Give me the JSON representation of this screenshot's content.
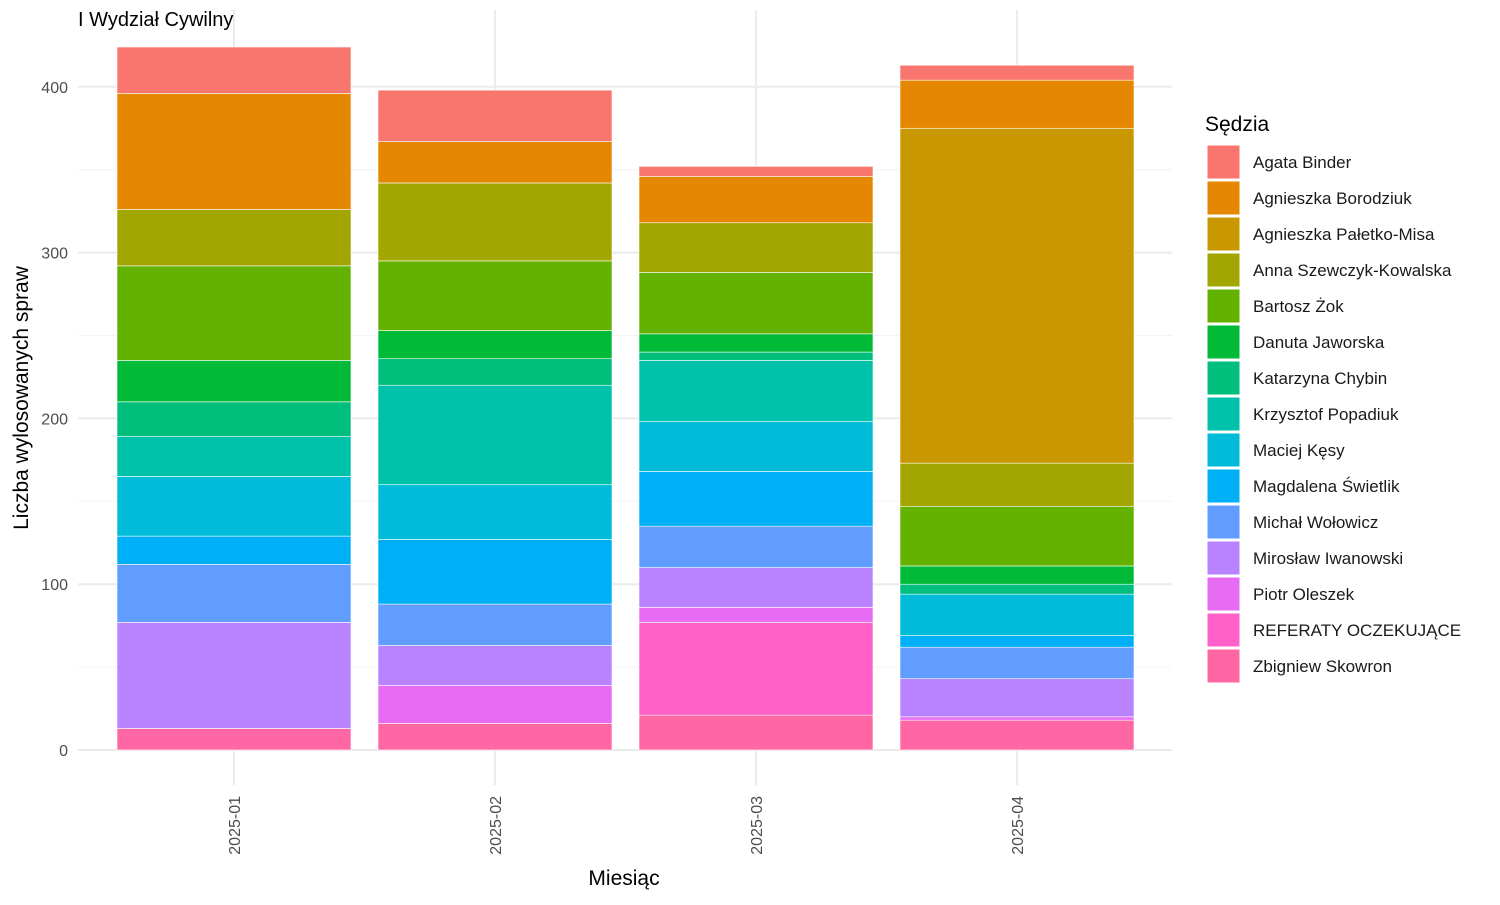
{
  "chart_data": {
    "type": "bar",
    "stacked": true,
    "title": "I Wydział Cywilny",
    "xlabel": "Miesiąc",
    "ylabel": "Liczba wylosowanych spraw",
    "ylim": [
      0,
      425
    ],
    "yticks": [
      0,
      100,
      200,
      300,
      400
    ],
    "grid": true,
    "legend": {
      "title": "Sędzia",
      "placement": "right"
    },
    "categories": [
      "2025-01",
      "2025-02",
      "2025-03",
      "2025-04"
    ],
    "series": [
      {
        "name": "Zbigniew Skowron",
        "color": "#FF67A4",
        "values": [
          13,
          16,
          21,
          18
        ]
      },
      {
        "name": "REFERATY OCZEKUJĄCE",
        "color": "#FF61C9",
        "values": [
          0,
          0,
          56,
          0
        ]
      },
      {
        "name": "Piotr Oleszek",
        "color": "#E76BF3",
        "values": [
          0,
          23,
          9,
          2
        ]
      },
      {
        "name": "Mirosław Iwanowski",
        "color": "#B983FF",
        "values": [
          64,
          24,
          24,
          23
        ]
      },
      {
        "name": "Michał Wołowicz",
        "color": "#619CFF",
        "values": [
          35,
          25,
          25,
          19
        ]
      },
      {
        "name": "Magdalena Świetlik",
        "color": "#00B0F6",
        "values": [
          17,
          39,
          33,
          7
        ]
      },
      {
        "name": "Maciej Kęsy",
        "color": "#00BCD8",
        "values": [
          36,
          33,
          30,
          25
        ]
      },
      {
        "name": "Krzysztof Popadiuk",
        "color": "#00C1AA",
        "values": [
          24,
          60,
          37,
          0
        ]
      },
      {
        "name": "Katarzyna Chybin",
        "color": "#00BF7D",
        "values": [
          21,
          16,
          5,
          6
        ]
      },
      {
        "name": "Danuta Jaworska",
        "color": "#00BA38",
        "values": [
          25,
          17,
          11,
          11
        ]
      },
      {
        "name": "Bartosz Żok",
        "color": "#64B200",
        "values": [
          57,
          42,
          37,
          36
        ]
      },
      {
        "name": "Anna Szewczyk-Kowalska",
        "color": "#A3A500",
        "values": [
          34,
          47,
          30,
          26
        ]
      },
      {
        "name": "Agnieszka Pałetko-Misa",
        "color": "#C99800",
        "values": [
          0,
          0,
          0,
          202
        ]
      },
      {
        "name": "Agnieszka Borodziuk",
        "color": "#E58700",
        "values": [
          70,
          25,
          28,
          29
        ]
      },
      {
        "name": "Agata Binder",
        "color": "#F8766D",
        "values": [
          28,
          31,
          6,
          9
        ]
      }
    ]
  }
}
